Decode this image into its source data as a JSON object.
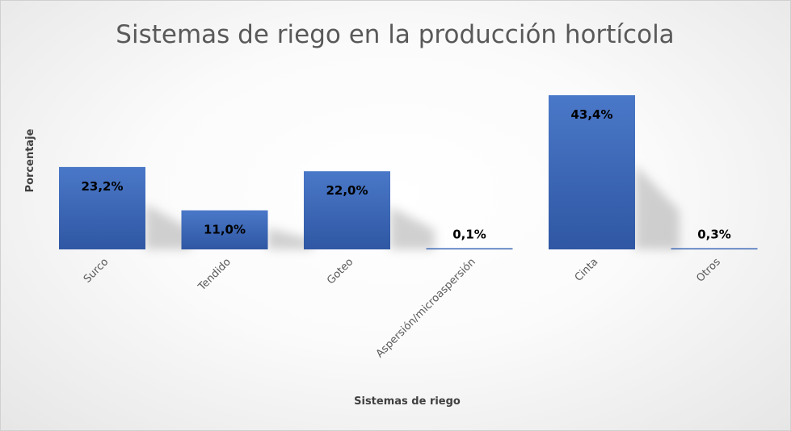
{
  "chart_data": {
    "type": "bar",
    "title": "Sistemas de riego en la producción hortícola",
    "xlabel": "Sistemas de riego",
    "ylabel": "Porcentaje",
    "categories": [
      "Surco",
      "Tendido",
      "Goteo",
      "Aspersión/microaspersión",
      "Cinta",
      "Otros"
    ],
    "values": [
      23.2,
      11.0,
      22.0,
      0.1,
      43.4,
      0.3
    ],
    "data_labels": [
      "23,2%",
      "11,0%",
      "22,0%",
      "0,1%",
      "43,4%",
      "0,3%"
    ],
    "ylim": [
      0,
      45
    ],
    "grid": false,
    "legend": "none",
    "colors": {
      "bar": "#4472c4",
      "bar_dark": "#2f57a3",
      "title": "#595959",
      "text": "#404040"
    }
  }
}
